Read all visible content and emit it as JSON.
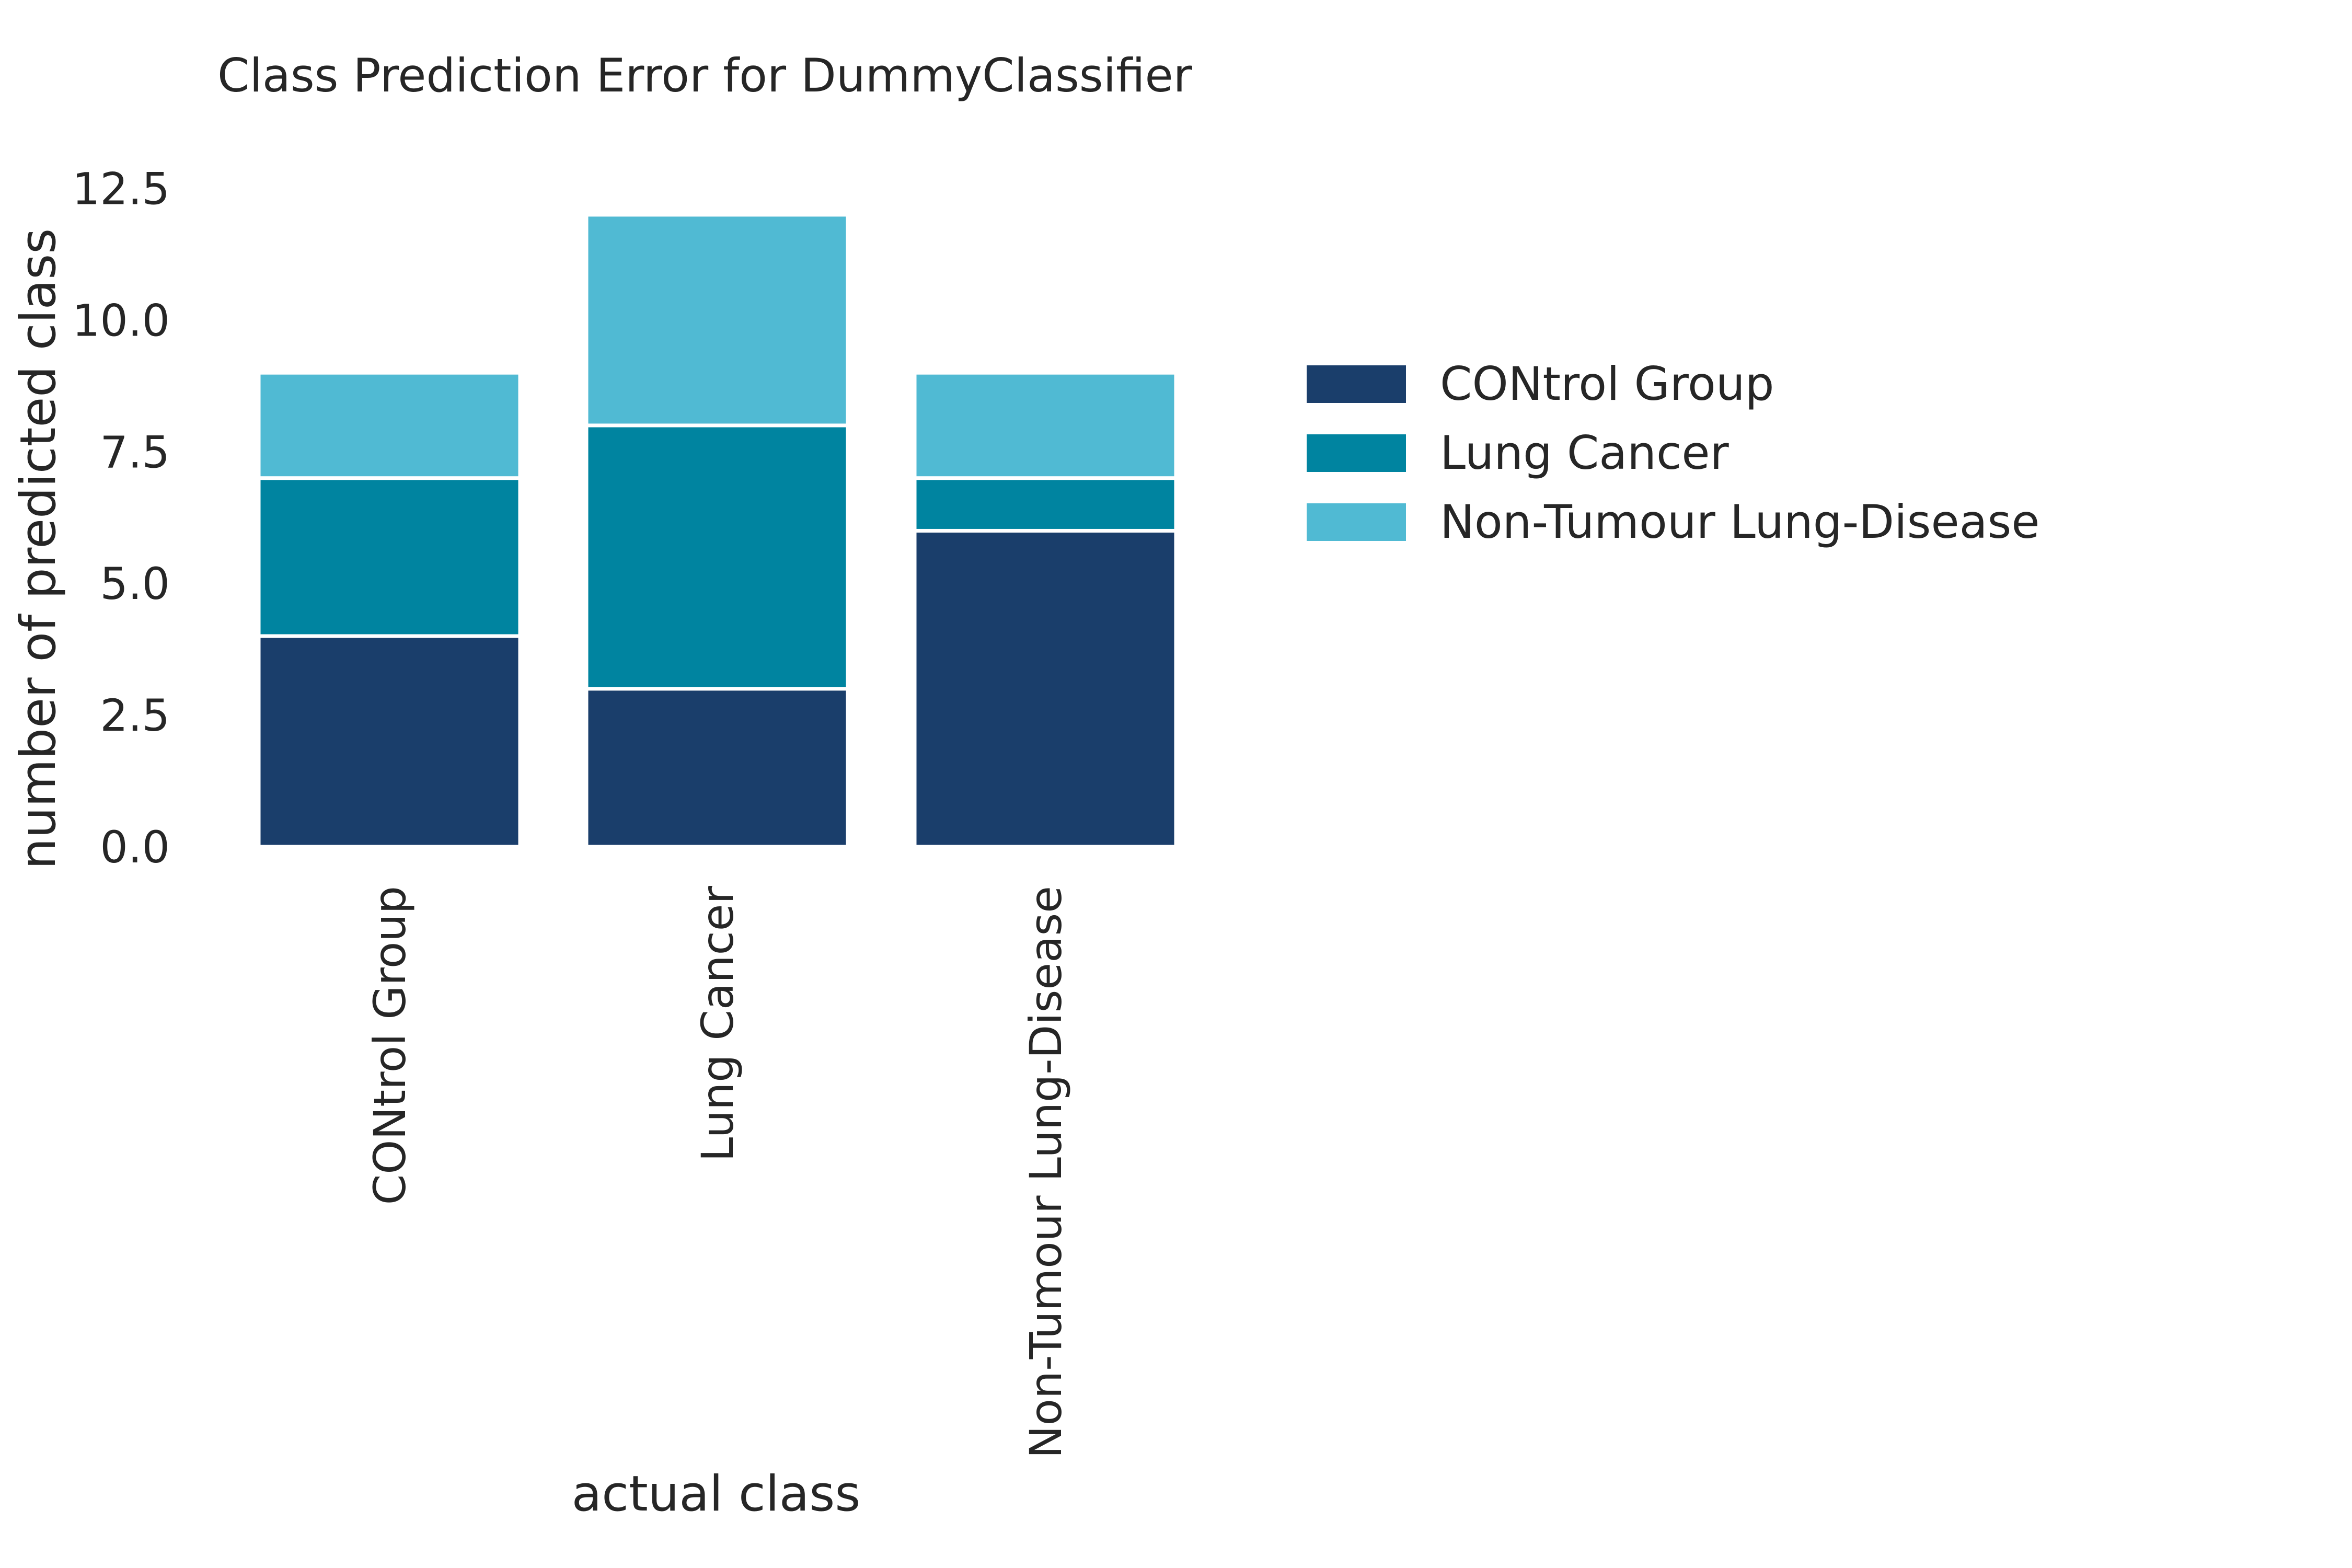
{
  "chart_data": {
    "type": "bar",
    "stacked": true,
    "title": "Class Prediction Error for DummyClassifier",
    "xlabel": "actual class",
    "ylabel": "number of predicted class",
    "categories": [
      "CONtrol Group",
      "Lung Cancer",
      "Non-Tumour Lung-Disease"
    ],
    "series": [
      {
        "name": "CONtrol Group",
        "values": [
          4,
          3,
          6
        ],
        "color": "#1a3e6b"
      },
      {
        "name": "Lung Cancer",
        "values": [
          3,
          5,
          1
        ],
        "color": "#0084a0"
      },
      {
        "name": "Non-Tumour Lung-Disease",
        "values": [
          2,
          4,
          2
        ],
        "color": "#50bad3"
      }
    ],
    "ylim": [
      0,
      13.2
    ],
    "yticks": [
      "0.0",
      "2.5",
      "5.0",
      "7.5",
      "10.0",
      "12.5"
    ],
    "ytick_values": [
      0,
      2.5,
      5,
      7.5,
      10,
      12.5
    ],
    "grid": false,
    "legend_position": "right"
  }
}
